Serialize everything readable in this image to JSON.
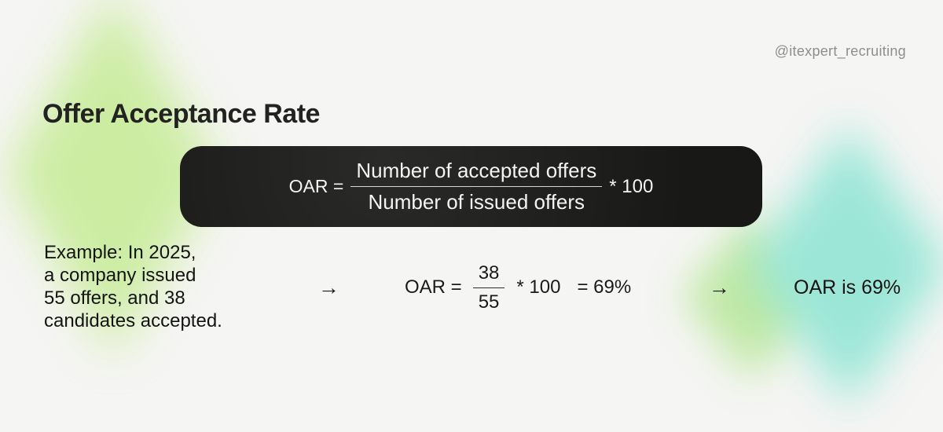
{
  "meta": {
    "handle": "@itexpert_recruiting"
  },
  "title": "Offer Acceptance Rate",
  "formula_box": {
    "lhs": "OAR =",
    "numerator": "Number of accepted offers",
    "denominator": "Number of issued offers",
    "multiplier": "* 100"
  },
  "example": {
    "text": "Example: In 2025,\na company issued\n55 offers, and 38\ncandidates accepted."
  },
  "calculation": {
    "arrow": "→",
    "lhs": "OAR =",
    "numerator": "38",
    "denominator": "55",
    "multiplier": "* 100",
    "result": "= 69%"
  },
  "conclusion": {
    "arrow": "→",
    "text": "OAR is 69%"
  },
  "colors": {
    "background": "#f5f5f3",
    "text": "#1b1b19",
    "muted": "#8e8e8e",
    "box_bg": "#1e1e1c",
    "box_text": "#f4f4f2",
    "green_blob": "#c9ec9c",
    "teal_blob": "#97e6d6",
    "right_green_blob": "#b9e79b"
  }
}
